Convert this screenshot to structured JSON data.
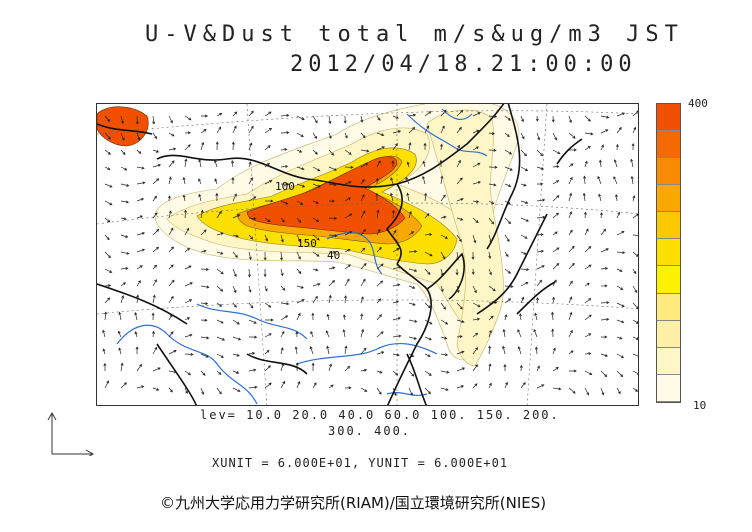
{
  "title": "U-V&Dust total m/s&ug/m3 JST",
  "datetime": "2012/04/18.21:00:00",
  "colorbar": {
    "max_label": "400",
    "min_label": "10",
    "levels": [
      10,
      20,
      40,
      60,
      100,
      150,
      200,
      300,
      400
    ],
    "colors": [
      "#fffbe6",
      "#fff6c8",
      "#fff0a8",
      "#ffea80",
      "#fff200",
      "#fde000",
      "#fbc800",
      "#f9a800",
      "#f78a00",
      "#f46a00",
      "#f05000"
    ]
  },
  "contour_labels": [
    "100",
    "150",
    "40"
  ],
  "levels_line1": "lev= 10.0 20.0 40.0 60.0 100. 150. 200.",
  "levels_line2": "300. 400.",
  "units": "XUNIT = 6.000E+01, YUNIT = 6.000E+01",
  "credit": "©九州大学応用力学研究所(RIAM)/国立環境研究所(NIES)"
}
